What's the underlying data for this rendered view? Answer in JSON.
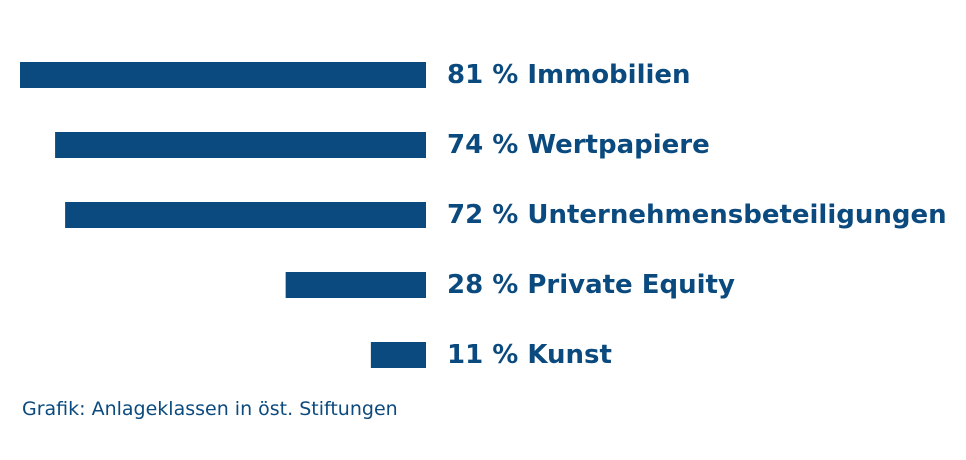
{
  "chart_data": {
    "type": "bar",
    "orientation": "horizontal",
    "categories": [
      "Immobilien",
      "Wertpapiere",
      "Unternehmensbeteiligungen",
      "Private Equity",
      "Kunst"
    ],
    "values": [
      81,
      74,
      72,
      28,
      11
    ],
    "unit": "%",
    "labels": [
      "81 % Immobilien",
      "74 % Wertpapiere",
      "72 % Unternehmensbeteiligungen",
      "28 % Private Equity",
      "11 % Kunst"
    ],
    "xlim": [
      0,
      81
    ],
    "bar_color": "#0b4a7e",
    "grid": false,
    "legend": "none"
  },
  "caption": "Grafik: Anlageklassen in öst. Stiftungen"
}
